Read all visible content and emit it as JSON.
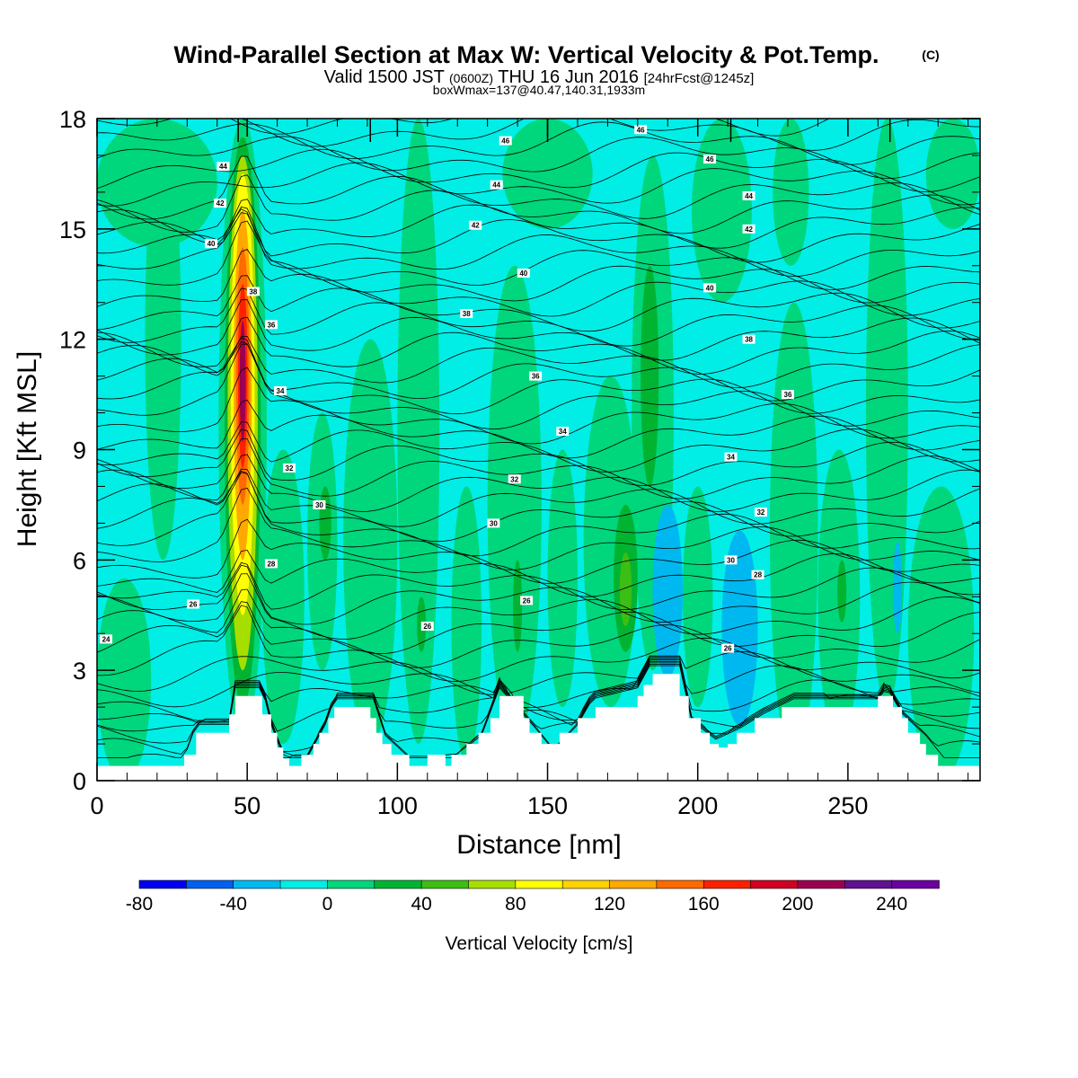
{
  "chart_data": {
    "type": "heatmap",
    "title": "Wind-Parallel Section at Max W: Vertical Velocity & Pot.Temp.",
    "title_mark": "(C)",
    "subtitle_parts": [
      "Valid 1500 JST",
      "(0600Z)",
      "THU 16 Jun 2016",
      "[24hrFcst@1245z]"
    ],
    "subtitle2": "boxWmax=137@40.47,140.31,1933m",
    "xlabel": "Distance [nm]",
    "ylabel": "Height [Kft MSL]",
    "xlim": [
      0,
      294
    ],
    "ylim": [
      0,
      18
    ],
    "x_ticks": [
      "0",
      "50",
      "100",
      "150",
      "200",
      "250"
    ],
    "y_ticks": [
      "0",
      "3",
      "6",
      "9",
      "12",
      "15",
      "18"
    ],
    "colorbar": {
      "label": "Vertical Velocity [cm/s]",
      "tick_labels": [
        "-80",
        "-40",
        "0",
        "40",
        "80",
        "120",
        "160",
        "200",
        "240"
      ],
      "levels": [
        -80,
        -60,
        -40,
        -20,
        0,
        20,
        40,
        60,
        80,
        100,
        120,
        140,
        160,
        180,
        200,
        220,
        240,
        260
      ],
      "colors": [
        "#0000f0",
        "#0060f0",
        "#00b8f0",
        "#00eee6",
        "#00d67c",
        "#00b432",
        "#3cbe14",
        "#a6de00",
        "#ffff00",
        "#ffd200",
        "#ffa800",
        "#ff6a00",
        "#ff2000",
        "#d00020",
        "#9a0050",
        "#601090",
        "#6a00a0"
      ]
    },
    "theta_contour_labels": [
      {
        "v": "24",
        "x": 3,
        "z": 3.85
      },
      {
        "v": "26",
        "x": 32,
        "z": 4.8
      },
      {
        "v": "26",
        "x": 110,
        "z": 4.2
      },
      {
        "v": "26",
        "x": 143,
        "z": 4.9
      },
      {
        "v": "26",
        "x": 210,
        "z": 3.6
      },
      {
        "v": "28",
        "x": 58,
        "z": 5.9
      },
      {
        "v": "28",
        "x": 220,
        "z": 5.6
      },
      {
        "v": "30",
        "x": 74,
        "z": 7.5
      },
      {
        "v": "30",
        "x": 132,
        "z": 7.0
      },
      {
        "v": "30",
        "x": 211,
        "z": 6.0
      },
      {
        "v": "32",
        "x": 64,
        "z": 8.5
      },
      {
        "v": "32",
        "x": 139,
        "z": 8.2
      },
      {
        "v": "32",
        "x": 221,
        "z": 7.3
      },
      {
        "v": "34",
        "x": 61,
        "z": 10.6
      },
      {
        "v": "34",
        "x": 155,
        "z": 9.5
      },
      {
        "v": "34",
        "x": 211,
        "z": 8.8
      },
      {
        "v": "36",
        "x": 58,
        "z": 12.4
      },
      {
        "v": "36",
        "x": 146,
        "z": 11.0
      },
      {
        "v": "36",
        "x": 230,
        "z": 10.5
      },
      {
        "v": "38",
        "x": 52,
        "z": 13.3
      },
      {
        "v": "38",
        "x": 123,
        "z": 12.7
      },
      {
        "v": "38",
        "x": 217,
        "z": 12.0
      },
      {
        "v": "40",
        "x": 38,
        "z": 14.6
      },
      {
        "v": "40",
        "x": 142,
        "z": 13.8
      },
      {
        "v": "40",
        "x": 204,
        "z": 13.4
      },
      {
        "v": "42",
        "x": 41,
        "z": 15.7
      },
      {
        "v": "42",
        "x": 126,
        "z": 15.1
      },
      {
        "v": "42",
        "x": 217,
        "z": 15.0
      },
      {
        "v": "44",
        "x": 42,
        "z": 16.7
      },
      {
        "v": "44",
        "x": 133,
        "z": 16.2
      },
      {
        "v": "44",
        "x": 217,
        "z": 15.9
      },
      {
        "v": "46",
        "x": 136,
        "z": 17.4
      },
      {
        "v": "46",
        "x": 204,
        "z": 16.9
      },
      {
        "v": "46",
        "x": 181,
        "z": 17.7
      }
    ]
  }
}
